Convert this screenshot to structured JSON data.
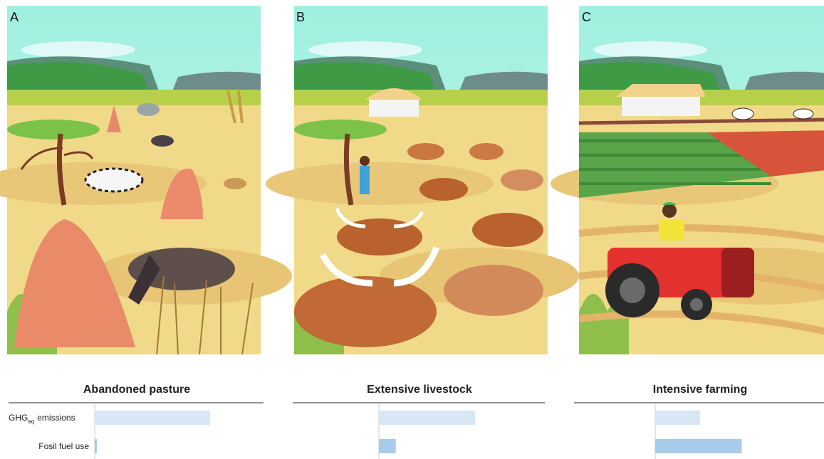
{
  "row_labels": [
    [
      "GHG",
      "eq",
      "emissions"
    ],
    [
      "Fosil fuel use"
    ]
  ],
  "scale_max": 240,
  "bar_colors": [
    "#d7e7f6",
    "#a7cbea"
  ],
  "panels": [
    {
      "letter": "A",
      "title": "Abandoned pasture",
      "bars": [
        164,
        3
      ]
    },
    {
      "letter": "B",
      "title": "Extensive livestock",
      "bars": [
        137,
        24
      ]
    },
    {
      "letter": "C",
      "title": "Intensive farming",
      "bars": [
        64,
        123
      ]
    }
  ]
}
